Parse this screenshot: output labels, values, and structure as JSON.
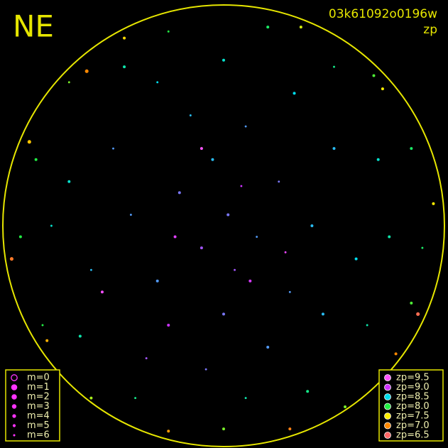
{
  "label": "NE",
  "image_id": "03k61092o0196w",
  "mode": "zp",
  "magnitude_legend": [
    {
      "label": "m=0",
      "m": 0
    },
    {
      "label": "m=1",
      "m": 1
    },
    {
      "label": "m=2",
      "m": 2
    },
    {
      "label": "m=3",
      "m": 3
    },
    {
      "label": "m=4",
      "m": 4
    },
    {
      "label": "m=5",
      "m": 5
    },
    {
      "label": "m=6",
      "m": 6
    }
  ],
  "zp_legend": [
    {
      "label": "zp=9.5",
      "zp": 9.5,
      "color": "#ff55ff"
    },
    {
      "label": "zp=9.0",
      "zp": 9.0,
      "color": "#cc33ff"
    },
    {
      "label": "zp=8.5",
      "zp": 8.5,
      "color": "#00ddee"
    },
    {
      "label": "zp=8.0",
      "zp": 8.0,
      "color": "#22ee44"
    },
    {
      "label": "zp=7.5",
      "zp": 7.5,
      "color": "#ffee00"
    },
    {
      "label": "zp=7.0",
      "zp": 7.0,
      "color": "#ff8800"
    },
    {
      "label": "zp=6.5",
      "zp": 6.5,
      "color": "#ff6666"
    }
  ],
  "stars": [
    [
      0.02,
      -0.05,
      4,
      8.8
    ],
    [
      -0.1,
      0.1,
      4,
      8.9
    ],
    [
      0.15,
      0.05,
      5,
      8.7
    ],
    [
      -0.2,
      -0.15,
      4,
      8.8
    ],
    [
      0.05,
      0.2,
      5,
      8.9
    ],
    [
      -0.3,
      0.25,
      4,
      8.7
    ],
    [
      0.25,
      -0.2,
      5,
      8.8
    ],
    [
      -0.05,
      -0.3,
      4,
      8.6
    ],
    [
      0.3,
      0.3,
      5,
      8.7
    ],
    [
      -0.25,
      0.45,
      4,
      9.0
    ],
    [
      0.1,
      -0.45,
      5,
      8.7
    ],
    [
      0.4,
      0.0,
      4,
      8.6
    ],
    [
      -0.42,
      -0.05,
      5,
      8.7
    ],
    [
      0.0,
      0.4,
      4,
      8.8
    ],
    [
      -0.15,
      -0.5,
      5,
      8.6
    ],
    [
      0.2,
      0.55,
      4,
      8.7
    ],
    [
      -0.35,
      0.6,
      5,
      8.9
    ],
    [
      0.5,
      -0.35,
      4,
      8.6
    ],
    [
      -0.5,
      -0.35,
      5,
      8.7
    ],
    [
      0.45,
      0.4,
      4,
      8.6
    ],
    [
      -0.08,
      0.65,
      5,
      8.8
    ],
    [
      0.6,
      0.15,
      4,
      8.5
    ],
    [
      -0.6,
      0.2,
      5,
      8.6
    ],
    [
      0.32,
      -0.6,
      4,
      8.5
    ],
    [
      -0.3,
      -0.65,
      5,
      8.5
    ],
    [
      0.12,
      0.25,
      4,
      9.1
    ],
    [
      -0.22,
      0.05,
      4,
      9.2
    ],
    [
      0.08,
      -0.18,
      5,
      9.0
    ],
    [
      0.7,
      -0.3,
      4,
      8.4
    ],
    [
      -0.7,
      -0.2,
      4,
      8.4
    ],
    [
      0.65,
      0.45,
      5,
      8.3
    ],
    [
      -0.65,
      0.5,
      4,
      8.3
    ],
    [
      0.0,
      -0.75,
      4,
      8.4
    ],
    [
      0.1,
      0.78,
      5,
      8.3
    ],
    [
      -0.45,
      -0.72,
      4,
      8.3
    ],
    [
      0.5,
      -0.72,
      5,
      8.2
    ],
    [
      0.75,
      0.05,
      4,
      8.3
    ],
    [
      -0.78,
      0.0,
      5,
      8.4
    ],
    [
      0.38,
      0.75,
      4,
      8.2
    ],
    [
      -0.4,
      0.78,
      5,
      8.2
    ],
    [
      0.85,
      -0.35,
      4,
      8.1
    ],
    [
      -0.85,
      -0.3,
      4,
      8.0
    ],
    [
      0.85,
      0.35,
      4,
      7.9
    ],
    [
      -0.82,
      0.45,
      5,
      8.0
    ],
    [
      0.2,
      -0.9,
      4,
      8.1
    ],
    [
      -0.25,
      -0.88,
      5,
      8.0
    ],
    [
      0.55,
      0.82,
      4,
      7.8
    ],
    [
      -0.6,
      0.78,
      4,
      7.7
    ],
    [
      0.9,
      0.1,
      5,
      8.1
    ],
    [
      -0.92,
      0.05,
      4,
      8.0
    ],
    [
      0.68,
      -0.68,
      4,
      7.9
    ],
    [
      -0.7,
      -0.65,
      5,
      7.8
    ],
    [
      0.0,
      0.92,
      4,
      7.8
    ],
    [
      -0.8,
      0.52,
      4,
      7.2
    ],
    [
      0.78,
      0.58,
      4,
      7.0
    ],
    [
      -0.88,
      -0.38,
      3,
      7.3
    ],
    [
      0.72,
      -0.62,
      4,
      7.5
    ],
    [
      0.35,
      -0.9,
      4,
      7.6
    ],
    [
      -0.45,
      -0.85,
      4,
      7.4
    ],
    [
      0.3,
      0.92,
      4,
      6.9
    ],
    [
      -0.25,
      0.93,
      4,
      7.1
    ],
    [
      0.95,
      -0.1,
      4,
      7.5
    ],
    [
      -0.96,
      0.15,
      3,
      6.8
    ],
    [
      0.88,
      0.4,
      3,
      6.6
    ],
    [
      -0.62,
      -0.7,
      3,
      7.0
    ],
    [
      -0.55,
      0.3,
      4,
      9.4
    ],
    [
      0.28,
      0.12,
      5,
      9.3
    ],
    [
      -0.1,
      -0.35,
      4,
      9.5
    ]
  ]
}
